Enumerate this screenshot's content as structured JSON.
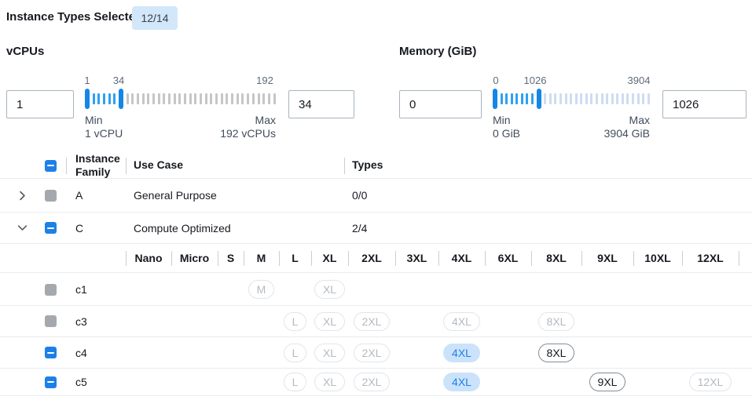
{
  "header": {
    "label": "Instance Types Selected:",
    "badge": "12/14"
  },
  "colors": {
    "accent": "#1d80e8",
    "slider_handle": "#1486e8",
    "slider_tick_active": "#2ea1f0",
    "vcpu_tick_inactive": "#c6c6c6",
    "memory_tick_inactive": "#cfdcf1",
    "selected_badge_bg": "#cbe3fa",
    "count_badge_bg": "#d2e7fa"
  },
  "filters": {
    "vcpus": {
      "title": "vCPUs",
      "min_value": "1",
      "max_value": "34",
      "scale_labels": [
        "1",
        "34",
        "192"
      ],
      "min_caption": "Min",
      "min_detail": "1 vCPU",
      "max_caption": "Max",
      "max_detail": "192 vCPUs",
      "slider": {
        "in_ticks": 5,
        "out_ticks": 29
      }
    },
    "memory": {
      "title": "Memory (GiB)",
      "min_value": "0",
      "max_value": "1026",
      "scale_labels": [
        "0",
        "1026",
        "3904"
      ],
      "min_caption": "Min",
      "min_detail": "0 GiB",
      "max_caption": "Max",
      "max_detail": "3904 GiB",
      "slider": {
        "in_ticks": 7,
        "out_ticks": 21
      }
    }
  },
  "table": {
    "headers": {
      "family": "Instance Family",
      "use_case": "Use Case",
      "types": "Types"
    },
    "size_columns": [
      "Nano",
      "Micro",
      "S",
      "M",
      "L",
      "XL",
      "2XL",
      "3XL",
      "4XL",
      "6XL",
      "8XL",
      "9XL",
      "10XL",
      "12XL"
    ],
    "family_rows": [
      {
        "family": "A",
        "use_case": "General Purpose",
        "types": "0/0",
        "expanded": false,
        "checkbox": "disabled"
      },
      {
        "family": "C",
        "use_case": "Compute Optimized",
        "types": "2/4",
        "expanded": true,
        "checkbox": "indeterminate"
      }
    ],
    "type_rows": [
      {
        "name": "c1",
        "checkbox": "disabled",
        "badges": [
          {
            "size": "M",
            "state": "disabled"
          },
          {
            "size": "XL",
            "state": "disabled"
          }
        ]
      },
      {
        "name": "c3",
        "checkbox": "disabled",
        "badges": [
          {
            "size": "L",
            "state": "disabled"
          },
          {
            "size": "XL",
            "state": "disabled"
          },
          {
            "size": "2XL",
            "state": "disabled"
          },
          {
            "size": "4XL",
            "state": "disabled"
          },
          {
            "size": "8XL",
            "state": "disabled"
          }
        ]
      },
      {
        "name": "c4",
        "checkbox": "indeterminate",
        "badges": [
          {
            "size": "L",
            "state": "disabled"
          },
          {
            "size": "XL",
            "state": "disabled"
          },
          {
            "size": "2XL",
            "state": "disabled"
          },
          {
            "size": "4XL",
            "state": "selected"
          },
          {
            "size": "8XL",
            "state": "enabled"
          }
        ]
      },
      {
        "name": "c5",
        "checkbox": "indeterminate",
        "badges": [
          {
            "size": "L",
            "state": "disabled"
          },
          {
            "size": "XL",
            "state": "disabled"
          },
          {
            "size": "2XL",
            "state": "disabled"
          },
          {
            "size": "4XL",
            "state": "selected"
          },
          {
            "size": "9XL",
            "state": "enabled"
          },
          {
            "size": "12XL",
            "state": "disabled"
          }
        ]
      }
    ]
  }
}
